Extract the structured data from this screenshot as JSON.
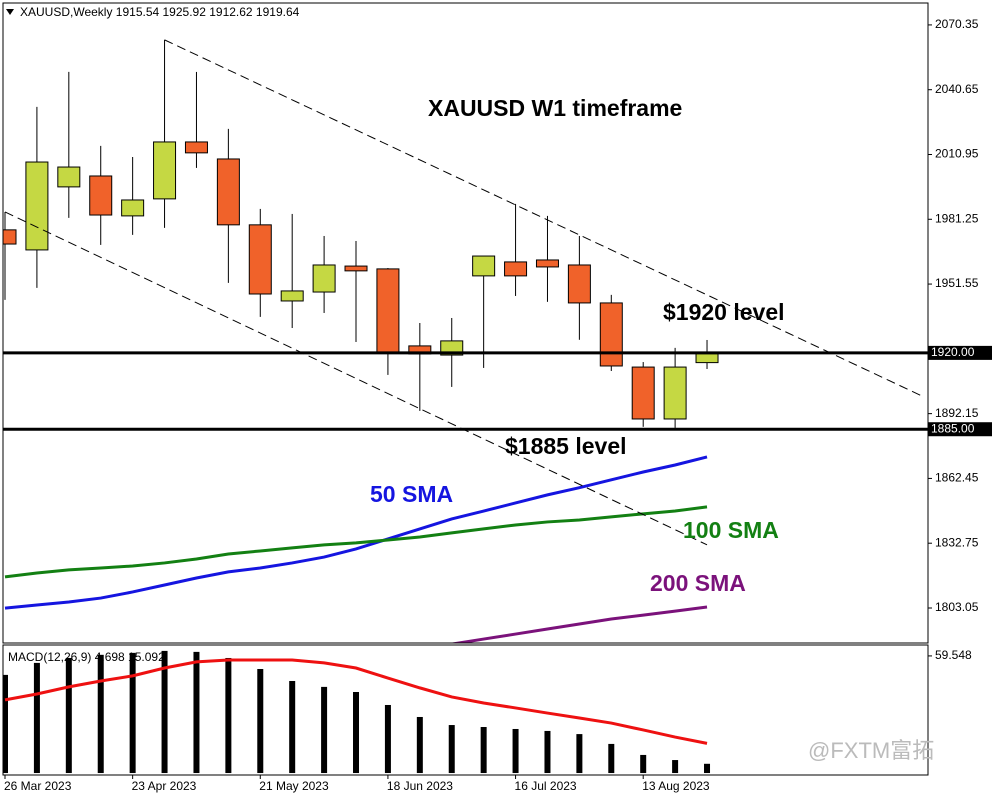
{
  "chart_data": [
    {
      "type": "candlestick",
      "header": "XAUUSD,Weekly  1915.54 1925.92 1912.62 1919.64",
      "title": "XAUUSD W1 timeframe",
      "categories": [
        "26 Mar 2023",
        null,
        null,
        null,
        "23 Apr 2023",
        null,
        null,
        null,
        "21 May 2023",
        null,
        null,
        null,
        "18 Jun 2023",
        null,
        null,
        null,
        "16 Jul 2023",
        null,
        null,
        null,
        "13 Aug 2023",
        null,
        null
      ],
      "open": [
        1976.4,
        1967.2,
        1996.1,
        2001.1,
        1982.8,
        1990.6,
        2016.7,
        2008.9,
        1978.7,
        1943.8,
        1947.9,
        1959.8,
        1958.5,
        1923.2,
        1919.0,
        1955.3,
        1961.7,
        1962.6,
        1960.3,
        1942.9,
        1913.5,
        1889.7,
        1915.54
      ],
      "high": [
        1984.6,
        2032.8,
        2048.8,
        2014.9,
        2009.8,
        2063.5,
        2048.8,
        2022.7,
        1986.0,
        1983.7,
        1973.6,
        1971.3,
        1958.9,
        1933.7,
        1936.0,
        1964.4,
        1988.3,
        1982.8,
        1973.6,
        1946.6,
        1915.8,
        1922.3,
        1925.92
      ],
      "low": [
        1944.3,
        1949.8,
        1981.9,
        1969.5,
        1974.1,
        1977.3,
        2004.8,
        1952.1,
        1936.5,
        1931.4,
        1938.3,
        1925.0,
        1909.9,
        1893.4,
        1904.4,
        1913.1,
        1946.1,
        1943.4,
        1926.0,
        1911.7,
        1886.1,
        1885.6,
        1912.62
      ],
      "close": [
        1969.9,
        2007.5,
        2005.2,
        1983.2,
        1990.1,
        2016.7,
        2011.7,
        1978.7,
        1947.0,
        1948.4,
        1960.3,
        1957.6,
        1920.4,
        1919.5,
        1925.5,
        1964.4,
        1955.3,
        1959.4,
        1942.9,
        1914.0,
        1889.7,
        1913.5,
        1919.64
      ],
      "up_color": "#c5d843",
      "down_color": "#f0622a",
      "series": [
        {
          "name": "50 SMA",
          "color": "#1515e0",
          "values": [
            1803.0,
            1804.4,
            1805.8,
            1807.6,
            1810.4,
            1813.6,
            1816.8,
            1819.6,
            1821.4,
            1823.7,
            1826.4,
            1830.1,
            1834.7,
            1839.3,
            1843.9,
            1847.5,
            1851.2,
            1854.9,
            1858.2,
            1861.8,
            1865.4,
            1868.6,
            1872.3
          ]
        },
        {
          "name": "100 SMA",
          "color": "#138013",
          "values": [
            1817.3,
            1819.1,
            1820.5,
            1821.4,
            1822.3,
            1823.7,
            1825.5,
            1827.8,
            1829.2,
            1830.6,
            1832.0,
            1832.9,
            1834.2,
            1835.6,
            1837.5,
            1839.3,
            1841.1,
            1842.5,
            1843.4,
            1844.8,
            1846.2,
            1847.5,
            1849.4
          ]
        },
        {
          "name": "200 SMA",
          "color": "#7b127b",
          "values": [
            null,
            null,
            null,
            null,
            null,
            null,
            null,
            null,
            null,
            null,
            null,
            null,
            null,
            null,
            1786.5,
            1788.8,
            1791.1,
            1793.4,
            1795.7,
            1798.0,
            1799.8,
            1801.6,
            1803.5
          ]
        }
      ],
      "hlines": [
        {
          "value": 1920,
          "label": "1920.00"
        },
        {
          "value": 1885,
          "label": "1885.00"
        }
      ],
      "trend_lines": [
        {
          "x": [
            5,
            28.8
          ],
          "y": [
            2063.5,
            1899.8
          ]
        },
        {
          "x": [
            0,
            22
          ],
          "y": [
            1984.6,
            1832.0
          ]
        }
      ],
      "annotations": [
        "$1920 level",
        "$1885 level"
      ],
      "ylim": [
        1787,
        2080.4
      ],
      "yticks": [
        2070.35,
        2040.65,
        2010.95,
        1981.25,
        1951.55,
        1892.15,
        1862.45,
        1832.75,
        1803.05
      ]
    },
    {
      "type": "macd",
      "label": "MACD(12,26,9) 4.698 15.092",
      "histogram": {
        "color": "#000000",
        "values": [
          49.9,
          56.0,
          58.5,
          60.1,
          61.1,
          62.1,
          61.6,
          58.5,
          52.9,
          46.8,
          43.8,
          41.2,
          34.6,
          28.5,
          24.4,
          23.4,
          22.4,
          21.4,
          19.8,
          14.8,
          9.2,
          6.6,
          4.698
        ]
      },
      "signal": {
        "color": "#ee1111",
        "values": [
          37.2,
          40.2,
          43.8,
          46.8,
          49.4,
          53.4,
          56.5,
          57.5,
          57.5,
          57.5,
          56.0,
          53.4,
          48.3,
          43.3,
          38.7,
          35.6,
          33.1,
          30.5,
          28.0,
          25.4,
          21.9,
          18.3,
          15.092
        ]
      },
      "ylim": [
        -1,
        65.1
      ],
      "yticks": [
        59.548
      ]
    },
    {
      "type": "watermark",
      "text": "@FXTM富拓"
    }
  ]
}
